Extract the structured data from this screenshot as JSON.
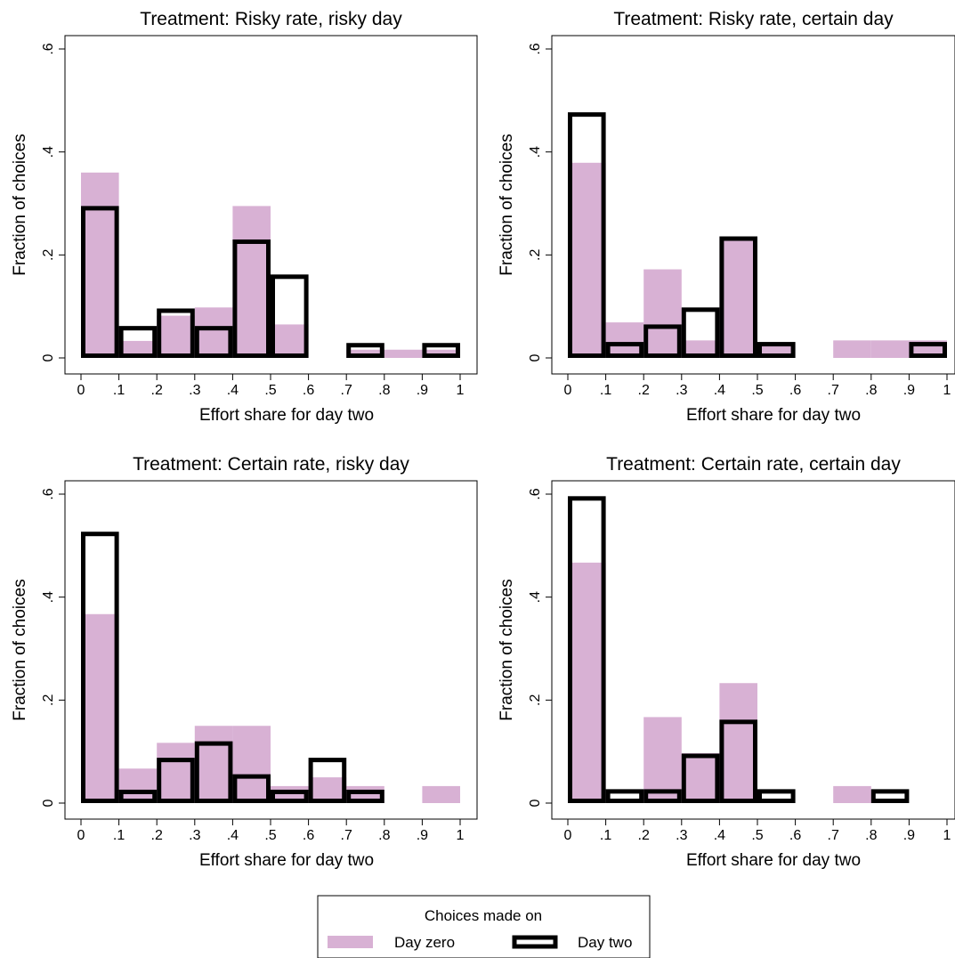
{
  "legend": {
    "title": "Choices made on",
    "entries": [
      {
        "name": "Day zero",
        "color": "#d8b1d4"
      },
      {
        "name": "Day two",
        "color": "#000000"
      }
    ],
    "placement": "bottom-center"
  },
  "chart_data": [
    {
      "type": "bar",
      "title": "Treatment: Risky rate, risky day",
      "xlabel": "Effort share for day two",
      "ylabel": "Fraction of choices",
      "xlim": [
        0,
        1
      ],
      "ylim": [
        0,
        0.6
      ],
      "xticks": [
        "0",
        ".1",
        ".2",
        ".3",
        ".4",
        ".5",
        ".6",
        ".7",
        ".8",
        ".9",
        "1"
      ],
      "yticks": [
        "0",
        ".2",
        ".4",
        ".6"
      ],
      "bins": [
        0,
        0.1,
        0.2,
        0.3,
        0.4,
        0.5,
        0.6,
        0.7,
        0.8,
        0.9
      ],
      "bin_width": 0.1,
      "series": [
        {
          "name": "Day zero",
          "values": [
            0.36,
            0.033,
            0.082,
            0.098,
            0.295,
            0.065,
            0,
            0.016,
            0.016,
            0.016
          ]
        },
        {
          "name": "Day two",
          "values": [
            0.295,
            0.062,
            0.096,
            0.062,
            0.23,
            0.162,
            0,
            0.029,
            0,
            0.029
          ]
        }
      ],
      "grid": false
    },
    {
      "type": "bar",
      "title": "Treatment: Risky rate, certain day",
      "xlabel": "Effort share for day two",
      "ylabel": "Fraction of choices",
      "xlim": [
        0,
        1
      ],
      "ylim": [
        0,
        0.6
      ],
      "xticks": [
        "0",
        ".1",
        ".2",
        ".3",
        ".4",
        ".5",
        ".6",
        ".7",
        ".8",
        ".9",
        "1"
      ],
      "yticks": [
        "0",
        ".2",
        ".4",
        ".6"
      ],
      "bins": [
        0,
        0.1,
        0.2,
        0.3,
        0.4,
        0.5,
        0.6,
        0.7,
        0.8,
        0.9
      ],
      "bin_width": 0.1,
      "series": [
        {
          "name": "Day zero",
          "values": [
            0.379,
            0.069,
            0.172,
            0.034,
            0.236,
            0.029,
            0,
            0.034,
            0.034,
            0.034
          ]
        },
        {
          "name": "Day two",
          "values": [
            0.477,
            0.031,
            0.065,
            0.098,
            0.236,
            0.031,
            0,
            0,
            0,
            0.031
          ]
        }
      ],
      "grid": false
    },
    {
      "type": "bar",
      "title": "Treatment: Certain rate, risky day",
      "xlabel": "Effort share for day two",
      "ylabel": "Fraction of choices",
      "xlim": [
        0,
        1
      ],
      "ylim": [
        0,
        0.6
      ],
      "xticks": [
        "0",
        ".1",
        ".2",
        ".3",
        ".4",
        ".5",
        ".6",
        ".7",
        ".8",
        ".9",
        "1"
      ],
      "yticks": [
        "0",
        ".2",
        ".4",
        ".6"
      ],
      "bins": [
        0,
        0.1,
        0.2,
        0.3,
        0.4,
        0.5,
        0.6,
        0.7,
        0.8,
        0.9
      ],
      "bin_width": 0.1,
      "series": [
        {
          "name": "Day zero",
          "values": [
            0.367,
            0.067,
            0.117,
            0.15,
            0.15,
            0.033,
            0.05,
            0.033,
            0,
            0.033
          ]
        },
        {
          "name": "Day two",
          "values": [
            0.527,
            0.026,
            0.088,
            0.12,
            0.056,
            0.026,
            0.088,
            0.026,
            0,
            0
          ]
        }
      ],
      "grid": false
    },
    {
      "type": "bar",
      "title": "Treatment: Certain rate, certain day",
      "xlabel": "Effort share for day two",
      "ylabel": "Fraction of choices",
      "xlim": [
        0,
        1
      ],
      "ylim": [
        0,
        0.6
      ],
      "xticks": [
        "0",
        ".1",
        ".2",
        ".3",
        ".4",
        ".5",
        ".6",
        ".7",
        ".8",
        ".9",
        "1"
      ],
      "yticks": [
        "0",
        ".2",
        ".4",
        ".6"
      ],
      "bins": [
        0,
        0.1,
        0.2,
        0.3,
        0.4,
        0.5,
        0.6,
        0.7,
        0.8,
        0.9
      ],
      "bin_width": 0.1,
      "series": [
        {
          "name": "Day zero",
          "values": [
            0.467,
            0,
            0.167,
            0.097,
            0.233,
            0,
            0,
            0.033,
            0,
            0
          ]
        },
        {
          "name": "Day two",
          "values": [
            0.596,
            0.027,
            0.027,
            0.096,
            0.162,
            0.027,
            0,
            0,
            0.027,
            0
          ]
        }
      ],
      "grid": false
    }
  ]
}
